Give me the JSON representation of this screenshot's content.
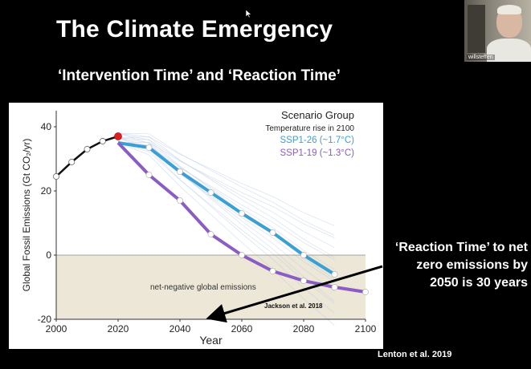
{
  "slide": {
    "title": "The Climate Emergency",
    "subtitle": "‘Intervention Time’ and ‘Reaction Time’",
    "side_note": "‘Reaction Time’ to net zero emissions by 2050 is 30 years",
    "credit": "Lenton et al. 2019"
  },
  "video": {
    "name": "willsteffen"
  },
  "colors": {
    "ssp126": "#3a9fd4",
    "ssp119": "#8a5cc4",
    "negative_region": "#ece7d6"
  },
  "chart_data": {
    "type": "line",
    "title": "",
    "xlabel": "Year",
    "ylabel": "Global Fossil Emissions (Gt CO₂/yr)",
    "xlim": [
      2000,
      2100
    ],
    "ylim": [
      -20,
      45
    ],
    "xticks": [
      2000,
      2020,
      2040,
      2060,
      2080,
      2100
    ],
    "yticks": [
      -20,
      0,
      20,
      40
    ],
    "grid": false,
    "legend": {
      "placement": "top-right",
      "title": "Scenario Group",
      "subtitle": "Temperature rise in 2100"
    },
    "series": [
      {
        "name": "SSP1-26 (~1.7°C)",
        "x": [
          2020,
          2030,
          2040,
          2050,
          2060,
          2070,
          2080,
          2090
        ],
        "values": [
          35,
          33.5,
          26,
          19.5,
          13,
          7,
          0,
          -6
        ]
      },
      {
        "name": "SSP1-19 (~1.3°C)",
        "x": [
          2020,
          2030,
          2040,
          2050,
          2060,
          2070,
          2080,
          2090,
          2100
        ],
        "values": [
          35,
          25,
          17,
          6.5,
          0,
          -5,
          -8,
          -10,
          -11.5
        ]
      }
    ],
    "historical": {
      "x": [
        2000,
        2005,
        2010,
        2015,
        2020
      ],
      "values": [
        24.5,
        29,
        33,
        35.5,
        37
      ]
    },
    "negative_region_label": "net-negative global emissions",
    "annotation": "Jackson et al. 2018"
  }
}
